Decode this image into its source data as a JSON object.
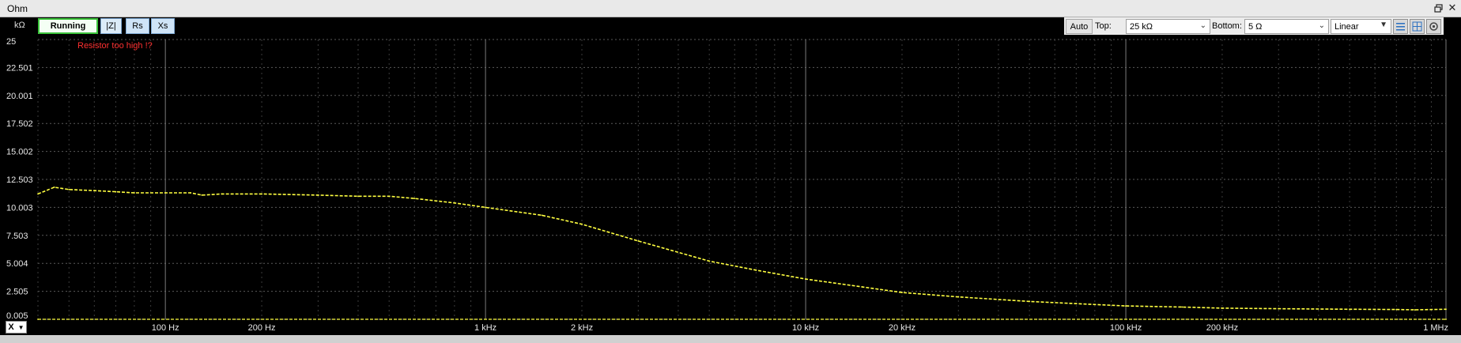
{
  "window": {
    "title": "Ohm"
  },
  "toolbar": {
    "unit": "kΩ",
    "run_label": "Running",
    "z_label": "|Z|",
    "rs_label": "Rs",
    "xs_label": "Xs",
    "auto_label": "Auto",
    "top_label": "Top:",
    "top_value": "25 kΩ",
    "bottom_label": "Bottom:",
    "bottom_value": "5 Ω",
    "scale_value": "Linear"
  },
  "warning": "Resistor too high !?",
  "x_selector": "X",
  "colors": {
    "background": "#000000",
    "trace": "#ffff40",
    "grid": "#5a5a5a",
    "warning": "#ff3030"
  },
  "icons": [
    "restore-icon",
    "close-icon",
    "chevron-down-icon",
    "cursor-marker-icon",
    "grid-icon",
    "settings-icon"
  ],
  "chart_data": {
    "type": "line",
    "x_scale": "log",
    "y_scale": "linear",
    "xlim": [
      40,
      1000000
    ],
    "ylim": [
      0.005,
      25
    ],
    "y_ticks": [
      "25",
      "22.501",
      "20.001",
      "17.502",
      "15.002",
      "12.503",
      "10.003",
      "7.503",
      "5.004",
      "2.505",
      "0.005"
    ],
    "x_ticks": [
      {
        "value": 100,
        "label": "100 Hz"
      },
      {
        "value": 200,
        "label": "200 Hz"
      },
      {
        "value": 1000,
        "label": "1 kHz"
      },
      {
        "value": 2000,
        "label": "2 kHz"
      },
      {
        "value": 10000,
        "label": "10 kHz"
      },
      {
        "value": 20000,
        "label": "20 kHz"
      },
      {
        "value": 100000,
        "label": "100 kHz"
      },
      {
        "value": 200000,
        "label": "200 kHz"
      },
      {
        "value": 1000000,
        "label": "1 MHz"
      }
    ],
    "grid": true,
    "series": [
      {
        "x": [
          40,
          45,
          50,
          60,
          70,
          80,
          100,
          120,
          130,
          150,
          200,
          300,
          400,
          500,
          600,
          800,
          1000,
          1500,
          2000,
          3000,
          5000,
          7000,
          10000,
          15000,
          20000,
          30000,
          50000,
          70000,
          100000,
          150000,
          200000,
          300000,
          500000,
          700000,
          800000,
          1000000
        ],
        "y": [
          11.2,
          11.8,
          11.6,
          11.5,
          11.4,
          11.3,
          11.3,
          11.3,
          11.1,
          11.2,
          11.2,
          11.1,
          11.0,
          11.0,
          10.8,
          10.4,
          10.0,
          9.3,
          8.5,
          7.0,
          5.2,
          4.4,
          3.6,
          2.9,
          2.4,
          2.0,
          1.6,
          1.4,
          1.2,
          1.1,
          1.0,
          0.95,
          0.9,
          0.88,
          0.85,
          0.9
        ]
      },
      {
        "x": [
          40,
          1000000
        ],
        "y": [
          0.005,
          0.005
        ]
      }
    ]
  }
}
